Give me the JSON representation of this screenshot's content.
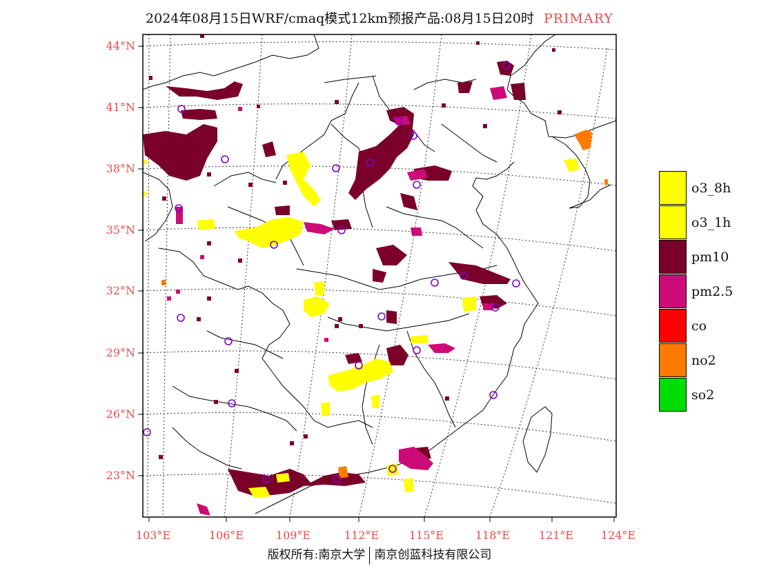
{
  "title": {
    "main": "2024年08月15日WRF/cmaq模式12km预报产品:08月15日20时",
    "tag": "PRIMARY",
    "tag_color": "#e84a4a"
  },
  "axes": {
    "lat_labels": [
      "44°N",
      "41°N",
      "38°N",
      "35°N",
      "32°N",
      "29°N",
      "26°N",
      "23°N"
    ],
    "lon_labels": [
      "103°E",
      "106°E",
      "109°E",
      "112°E",
      "115°E",
      "118°E",
      "121°E",
      "124°E"
    ],
    "label_color": "#e84a4a"
  },
  "legend": {
    "items": [
      {
        "label": "o3_8h",
        "color": "#ffff00"
      },
      {
        "label": "o3_1h",
        "color": "#ffff00"
      },
      {
        "label": "pm10",
        "color": "#7a0029"
      },
      {
        "label": "pm2.5",
        "color": "#cc0b78"
      },
      {
        "label": "co",
        "color": "#ff0000"
      },
      {
        "label": "no2",
        "color": "#ff7a00"
      },
      {
        "label": "so2",
        "color": "#00dd00"
      }
    ]
  },
  "footer": {
    "left": "版权所有:南京大学",
    "right": "南京创蓝科技有限公司"
  }
}
